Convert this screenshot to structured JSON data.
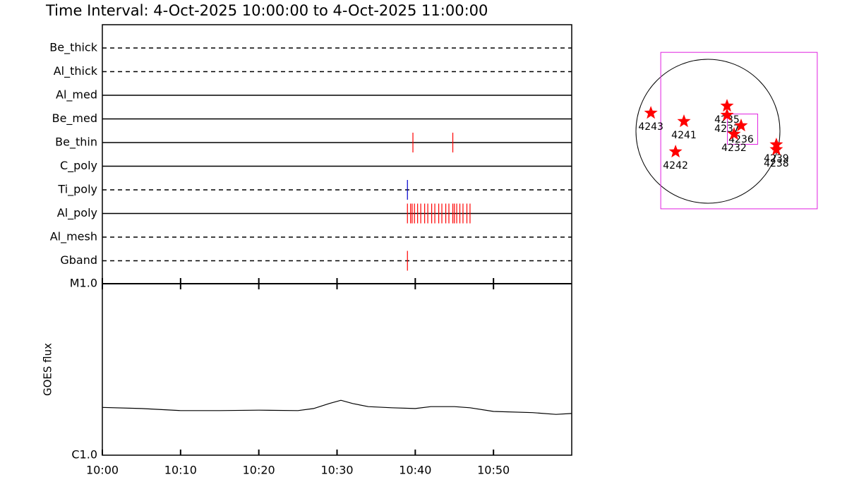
{
  "chart_data": [
    {
      "type": "timeline",
      "title": "Time Interval:  4-Oct-2025 10:00:00 to  4-Oct-2025 11:00:00",
      "xlim": [
        0,
        60
      ],
      "rows": [
        {
          "name": "Be_thick",
          "dashed": true,
          "color": "#ff0000",
          "events": []
        },
        {
          "name": "Al_thick",
          "dashed": true,
          "color": "#ff0000",
          "events": []
        },
        {
          "name": "Al_med",
          "dashed": false,
          "color": "#ff0000",
          "events": []
        },
        {
          "name": "Be_med",
          "dashed": false,
          "color": "#ff0000",
          "events": []
        },
        {
          "name": "Be_thin",
          "dashed": false,
          "color": "#ff0000",
          "events": [
            39.7,
            44.8
          ]
        },
        {
          "name": "C_poly",
          "dashed": false,
          "color": "#ff0000",
          "events": []
        },
        {
          "name": "Ti_poly",
          "dashed": true,
          "color": "#0000cc",
          "events": [
            39.0
          ]
        },
        {
          "name": "Al_poly",
          "dashed": false,
          "color": "#ff0000",
          "events": [
            39.0,
            39.4,
            39.6,
            39.9,
            40.3,
            40.7,
            41.2,
            41.6,
            42.1,
            42.5,
            43.0,
            43.4,
            43.9,
            44.3,
            44.8,
            45.0,
            45.3,
            45.7,
            46.1,
            46.6,
            47.0
          ]
        },
        {
          "name": "Al_mesh",
          "dashed": true,
          "color": "#ff0000",
          "events": []
        },
        {
          "name": "Gband",
          "dashed": true,
          "color": "#ff0000",
          "events": [
            39.0
          ]
        }
      ]
    },
    {
      "type": "line",
      "ylabel": "GOES flux",
      "log": true,
      "x": [
        0,
        5,
        10,
        15,
        20,
        25,
        27,
        29,
        30.5,
        32,
        34,
        37,
        40,
        42,
        45,
        47,
        50,
        55,
        58,
        60
      ],
      "values": [
        1.9e-06,
        1.87e-06,
        1.82e-06,
        1.82e-06,
        1.83e-06,
        1.82e-06,
        1.87e-06,
        2e-06,
        2.09e-06,
        2e-06,
        1.92e-06,
        1.89e-06,
        1.87e-06,
        1.92e-06,
        1.92e-06,
        1.89e-06,
        1.8e-06,
        1.77e-06,
        1.73e-06,
        1.75e-06
      ],
      "color": "#000000",
      "xlim": [
        0,
        60
      ],
      "xticks": [
        {
          "value": 0,
          "label": "10:00"
        },
        {
          "value": 10,
          "label": "10:10"
        },
        {
          "value": 20,
          "label": "10:20"
        },
        {
          "value": 30,
          "label": "10:30"
        },
        {
          "value": 40,
          "label": "10:40"
        },
        {
          "value": 50,
          "label": "10:50"
        }
      ],
      "ylim": [
        1e-06,
        1e-05
      ],
      "yticks": [
        {
          "value": 1e-06,
          "label": "C1.0"
        },
        {
          "value": 1e-05,
          "label": "M1.0"
        }
      ]
    },
    {
      "type": "scatter",
      "solar_radius": 960,
      "color": "#ff0000",
      "points": [
        {
          "label": "4243",
          "x": -761,
          "y": 244
        },
        {
          "label": "4241",
          "x": -320,
          "y": 132
        },
        {
          "label": "4235",
          "x": 254,
          "y": 338
        },
        {
          "label": "4237",
          "x": 254,
          "y": 216
        },
        {
          "label": "4236",
          "x": 442,
          "y": 75
        },
        {
          "label": "4232",
          "x": 348,
          "y": -38
        },
        {
          "label": "4239",
          "x": 912,
          "y": -179
        },
        {
          "label": "4238",
          "x": 912,
          "y": -244
        },
        {
          "label": "4242",
          "x": -432,
          "y": -273
        }
      ],
      "boxes": [
        {
          "xc": 414,
          "yc": 9,
          "width": 2087
        },
        {
          "xc": 461,
          "yc": 28,
          "width": 404
        }
      ],
      "box_color": "#e020e0"
    }
  ]
}
